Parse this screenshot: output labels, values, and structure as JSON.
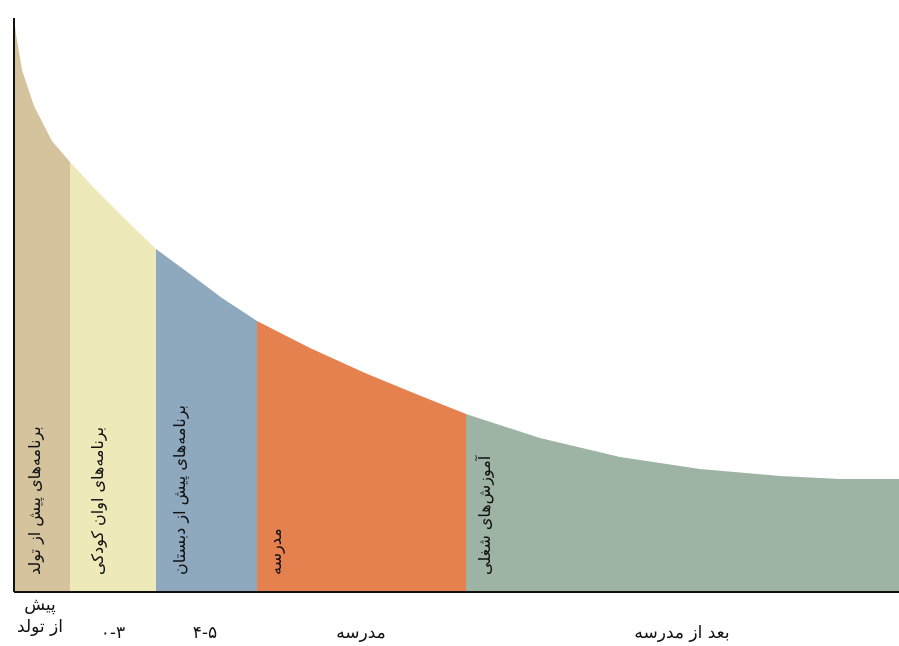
{
  "chart_data": {
    "type": "area",
    "title": "",
    "xlabel": "",
    "ylabel": "",
    "segments": [
      {
        "band_label": "برنامه‌های پیش از تولد",
        "axis_label_lines": [
          "پیش",
          "از تولد"
        ],
        "color": "#d4c39d"
      },
      {
        "band_label": "برنامه‌های اوان کودکی",
        "axis_label_lines": [
          "۰-۳"
        ],
        "color": "#ede9b8"
      },
      {
        "band_label": "برنامه‌های پیش از دبستان",
        "axis_label_lines": [
          "۴-۵"
        ],
        "color": "#8ea8bd"
      },
      {
        "band_label": "مدرسه",
        "axis_label_lines": [
          "مدرسه"
        ],
        "color": "#e5814f"
      },
      {
        "band_label": "آموزش‌های شغلی",
        "axis_label_lines": [
          "بعد از مدرسه"
        ],
        "color": "#9db4a4"
      }
    ],
    "axis_color": "#111111",
    "band_text_color": "#111111",
    "axis_text_color": "#111111"
  }
}
